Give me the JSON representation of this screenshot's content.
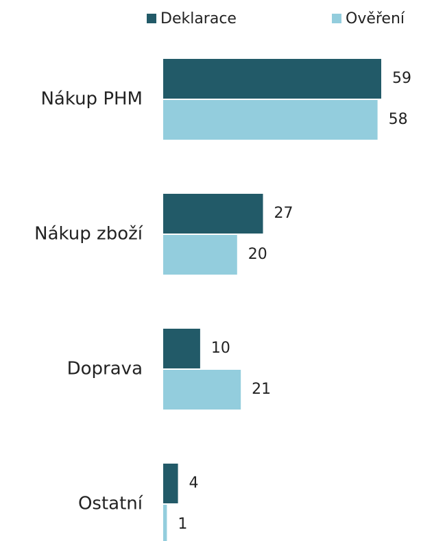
{
  "chart_data": {
    "type": "hbar",
    "categories": [
      "Nákup PHM",
      "Nákup zboží",
      "Doprava",
      "Ostatní"
    ],
    "series": [
      {
        "name": "Deklarace",
        "color": "#225a68",
        "values": [
          59,
          27,
          10,
          4
        ]
      },
      {
        "name": "Ověření",
        "color": "#93cddd",
        "values": [
          58,
          20,
          21,
          1
        ]
      }
    ]
  }
}
